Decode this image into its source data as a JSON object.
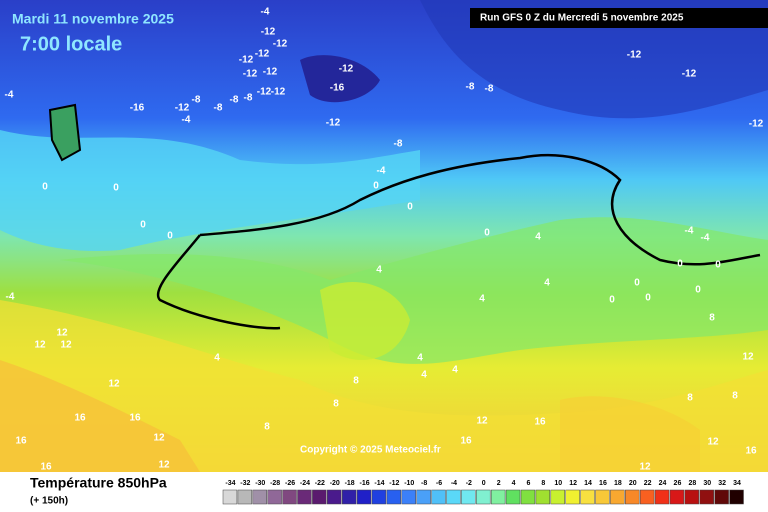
{
  "header": {
    "date": "Mardi 11 novembre 2025",
    "time": "7:00 locale",
    "run": "Run GFS 0 Z du Mercredi 5 novembre 2025"
  },
  "copyright": "Copyright © 2025 Meteociel.fr",
  "footer": {
    "title": "Température 850hPa",
    "lead": "(+ 150h)"
  },
  "contour_labels": [
    -4,
    -12,
    -12,
    -12,
    -12,
    -12,
    -12,
    -12,
    -12,
    -16,
    -12,
    -8,
    -8,
    -8,
    -8,
    -4,
    -4,
    -12,
    -16,
    -12,
    -8,
    -8,
    -12,
    -12,
    -12,
    -8,
    -4,
    0,
    0,
    0,
    0,
    0,
    0,
    0,
    4,
    4,
    4,
    4,
    -4,
    -4,
    0,
    0,
    0,
    0,
    0,
    0,
    4,
    4,
    4,
    4,
    8,
    8,
    8,
    8,
    8,
    8,
    12,
    12,
    12,
    12,
    12,
    12,
    12,
    12,
    12,
    12,
    16,
    16,
    16,
    16,
    16,
    16,
    16,
    -4
  ],
  "scale": {
    "values": [
      -34,
      -32,
      -30,
      -28,
      -26,
      -24,
      -22,
      -20,
      -18,
      -16,
      -14,
      -12,
      -10,
      -8,
      -6,
      -4,
      -2,
      0,
      2,
      4,
      6,
      8,
      10,
      12,
      14,
      16,
      18,
      20,
      22,
      24,
      26,
      28,
      30,
      32,
      34
    ],
    "colors": [
      "#d8d8d8",
      "#b8b8b8",
      "#a090a8",
      "#906898",
      "#804880",
      "#6a2a78",
      "#5a1a6e",
      "#4a1a8c",
      "#3020a8",
      "#2020c8",
      "#2040e0",
      "#2860f0",
      "#3c80f8",
      "#4aa0f8",
      "#50c0f8",
      "#5ad8f8",
      "#70e8f0",
      "#80f0d0",
      "#80f0a0",
      "#60e060",
      "#80e040",
      "#a0e030",
      "#c8f030",
      "#f0f030",
      "#f8e040",
      "#f8c838",
      "#f8a830",
      "#f88828",
      "#f86020",
      "#f03018",
      "#d81818",
      "#b81010",
      "#901010",
      "#600808",
      "#200000"
    ]
  }
}
